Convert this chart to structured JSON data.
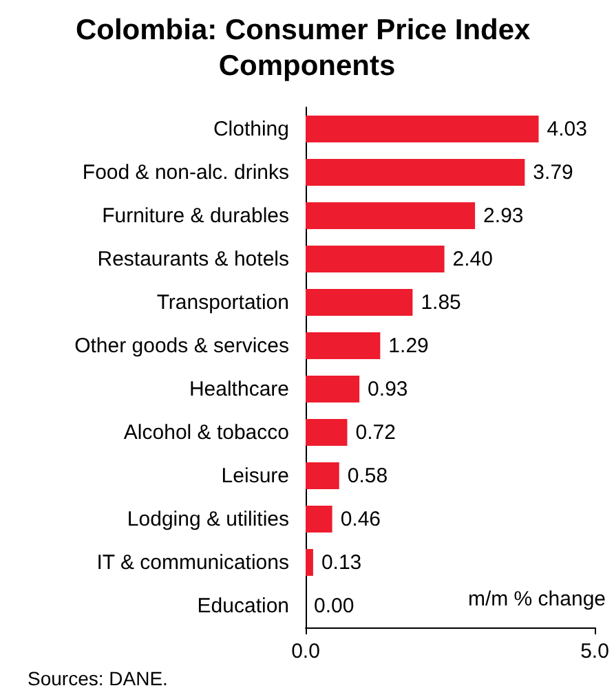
{
  "chart_data": {
    "type": "bar",
    "orientation": "horizontal",
    "title": "Colombia: Consumer Price Index Components",
    "categories": [
      "Clothing",
      "Food & non-alc. drinks",
      "Furniture & durables",
      "Restaurants & hotels",
      "Transportation",
      "Other goods & services",
      "Healthcare",
      "Alcohol & tobacco",
      "Leisure",
      "Lodging & utilities",
      "IT & communications",
      "Education"
    ],
    "values": [
      4.03,
      3.79,
      2.93,
      2.4,
      1.85,
      1.29,
      0.93,
      0.72,
      0.58,
      0.46,
      0.13,
      0.0
    ],
    "value_labels": [
      "4.03",
      "3.79",
      "2.93",
      "2.40",
      "1.85",
      "1.29",
      "0.93",
      "0.72",
      "0.58",
      "0.46",
      "0.13",
      "0.00"
    ],
    "color": "#ed1c2e",
    "xlim": [
      0,
      5
    ],
    "xticks": [
      {
        "value": 0,
        "label": "0.0"
      },
      {
        "value": 5,
        "label": "5.0"
      }
    ],
    "annotations": [
      "m/m % change",
      "Sources: DANE."
    ]
  }
}
